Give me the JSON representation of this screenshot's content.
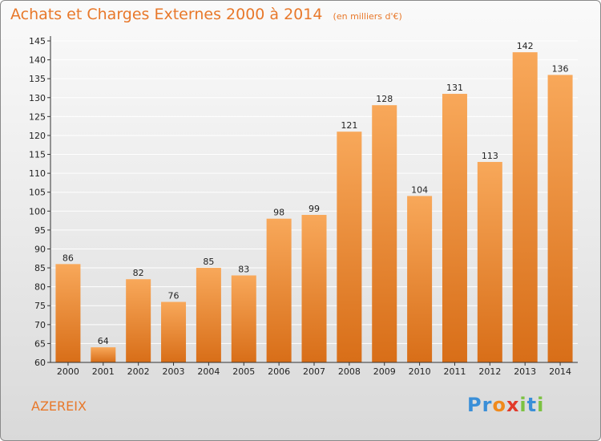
{
  "title": "Achats et Charges Externes 2000 à 2014",
  "subtitle": "(en milliers d'€)",
  "commune": "AZEREIX",
  "logo": {
    "text": "Proxiti",
    "letters": [
      {
        "char": "P",
        "color": "#3a8fd8"
      },
      {
        "char": "r",
        "color": "#3a8fd8"
      },
      {
        "char": "o",
        "color": "#f08a1c"
      },
      {
        "char": "x",
        "color": "#e23a2a"
      },
      {
        "char": "i",
        "color": "#7cc242"
      },
      {
        "char": "t",
        "color": "#3a8fd8"
      },
      {
        "char": "i",
        "color": "#7cc242"
      }
    ]
  },
  "colors": {
    "accent": "#e8782a",
    "bar_top": "#f8a85a",
    "bar_bottom": "#d86e18",
    "axis": "#333333",
    "grid": "#ffffff"
  },
  "chart_data": {
    "type": "bar",
    "categories": [
      "2000",
      "2001",
      "2002",
      "2003",
      "2004",
      "2005",
      "2006",
      "2007",
      "2008",
      "2009",
      "2010",
      "2011",
      "2012",
      "2013",
      "2014"
    ],
    "values": [
      86,
      64,
      82,
      76,
      85,
      83,
      98,
      99,
      121,
      128,
      104,
      131,
      113,
      142,
      136
    ],
    "yticks": [
      60,
      65,
      70,
      75,
      80,
      85,
      90,
      95,
      100,
      105,
      110,
      115,
      120,
      125,
      130,
      135,
      140,
      145
    ],
    "ylim": [
      60,
      145
    ],
    "grid": true,
    "title": "Achats et Charges Externes 2000 à 2014",
    "xlabel": "",
    "ylabel": ""
  }
}
